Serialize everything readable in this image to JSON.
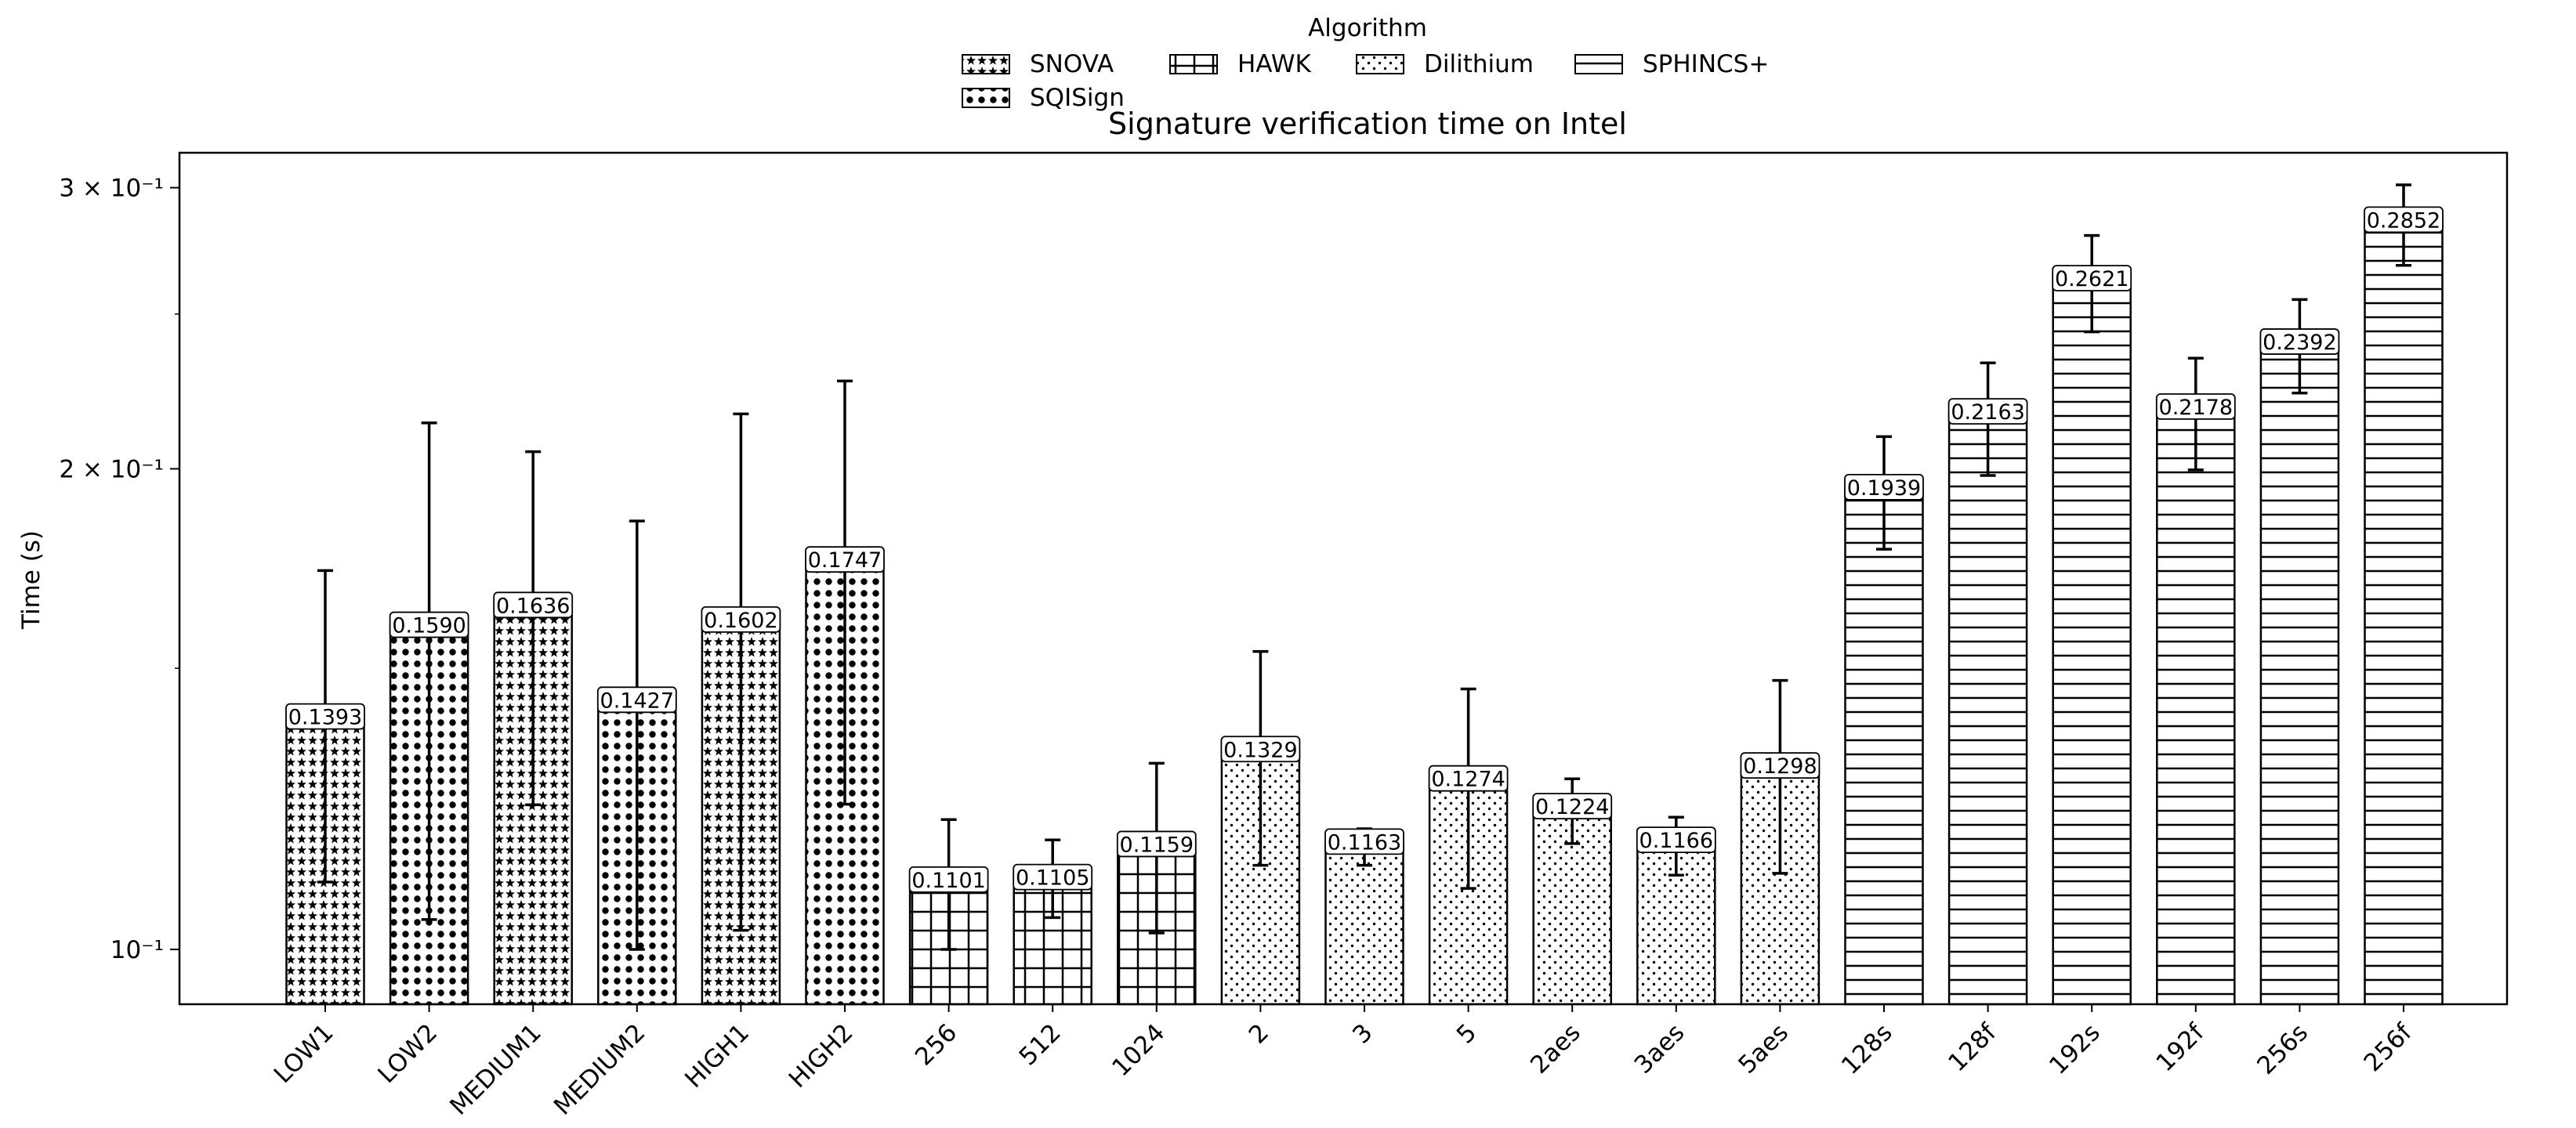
{
  "chart_data": {
    "type": "bar",
    "title": "Signature verification time on Intel",
    "xlabel": "",
    "ylabel": "Time (s)",
    "yscale": "log",
    "ylim": [
      0.0924,
      0.3155
    ],
    "yticks": [
      {
        "value": 0.1,
        "label": "10⁻¹"
      },
      {
        "value": 0.2,
        "label": "2 × 10⁻¹"
      },
      {
        "value": 0.3,
        "label": "3 × 10⁻¹"
      }
    ],
    "grid": false,
    "legend": {
      "title": "Algorithm",
      "placement": "top-center",
      "entries": [
        {
          "name": "SNOVA",
          "pattern": "stars"
        },
        {
          "name": "HAWK",
          "pattern": "grid"
        },
        {
          "name": "Dilithium",
          "pattern": "dots"
        },
        {
          "name": "SPHINCS+",
          "pattern": "hlines"
        },
        {
          "name": "SQISign",
          "pattern": "circles"
        }
      ]
    },
    "bars": [
      {
        "label": "LOW1",
        "algorithm": "SNOVA",
        "value": 0.1393,
        "err_low": 0.1102,
        "err_high": 0.1727,
        "value_label": "0.1393"
      },
      {
        "label": "LOW2",
        "algorithm": "SQISign",
        "value": 0.159,
        "err_low": 0.1044,
        "err_high": 0.2137,
        "value_label": "0.1590"
      },
      {
        "label": "MEDIUM1",
        "algorithm": "SNOVA",
        "value": 0.1636,
        "err_low": 0.1232,
        "err_high": 0.205,
        "value_label": "0.1636"
      },
      {
        "label": "MEDIUM2",
        "algorithm": "SQISign",
        "value": 0.1427,
        "err_low": 0.1,
        "err_high": 0.1855,
        "value_label": "0.1427"
      },
      {
        "label": "HIGH1",
        "algorithm": "SNOVA",
        "value": 0.1602,
        "err_low": 0.1028,
        "err_high": 0.2165,
        "value_label": "0.1602"
      },
      {
        "label": "HIGH2",
        "algorithm": "SQISign",
        "value": 0.1747,
        "err_low": 0.1233,
        "err_high": 0.227,
        "value_label": "0.1747"
      },
      {
        "label": "256",
        "algorithm": "HAWK",
        "value": 0.1101,
        "err_low": 0.1,
        "err_high": 0.1206,
        "value_label": "0.1101"
      },
      {
        "label": "512",
        "algorithm": "HAWK",
        "value": 0.1105,
        "err_low": 0.1047,
        "err_high": 0.1171,
        "value_label": "0.1105"
      },
      {
        "label": "1024",
        "algorithm": "HAWK",
        "value": 0.1159,
        "err_low": 0.1024,
        "err_high": 0.1308,
        "value_label": "0.1159"
      },
      {
        "label": "2",
        "algorithm": "Dilithium",
        "value": 0.1329,
        "err_low": 0.1129,
        "err_high": 0.1537,
        "value_label": "0.1329"
      },
      {
        "label": "3",
        "algorithm": "Dilithium",
        "value": 0.1163,
        "err_low": 0.1129,
        "err_high": 0.119,
        "value_label": "0.1163"
      },
      {
        "label": "5",
        "algorithm": "Dilithium",
        "value": 0.1274,
        "err_low": 0.1092,
        "err_high": 0.1456,
        "value_label": "0.1274"
      },
      {
        "label": "2aes",
        "algorithm": "Dilithium",
        "value": 0.1224,
        "err_low": 0.1165,
        "err_high": 0.1279,
        "value_label": "0.1224"
      },
      {
        "label": "3aes",
        "algorithm": "Dilithium",
        "value": 0.1166,
        "err_low": 0.1113,
        "err_high": 0.121,
        "value_label": "0.1166"
      },
      {
        "label": "5aes",
        "algorithm": "Dilithium",
        "value": 0.1298,
        "err_low": 0.1116,
        "err_high": 0.1474,
        "value_label": "0.1298"
      },
      {
        "label": "128s",
        "algorithm": "SPHINCS+",
        "value": 0.1939,
        "err_low": 0.1781,
        "err_high": 0.2095,
        "value_label": "0.1939"
      },
      {
        "label": "128f",
        "algorithm": "SPHINCS+",
        "value": 0.2163,
        "err_low": 0.1981,
        "err_high": 0.233,
        "value_label": "0.2163"
      },
      {
        "label": "192s",
        "algorithm": "SPHINCS+",
        "value": 0.2621,
        "err_low": 0.2437,
        "err_high": 0.28,
        "value_label": "0.2621"
      },
      {
        "label": "192f",
        "algorithm": "SPHINCS+",
        "value": 0.2178,
        "err_low": 0.1997,
        "err_high": 0.2346,
        "value_label": "0.2178"
      },
      {
        "label": "256s",
        "algorithm": "SPHINCS+",
        "value": 0.2392,
        "err_low": 0.2231,
        "err_high": 0.2553,
        "value_label": "0.2392"
      },
      {
        "label": "256f",
        "algorithm": "SPHINCS+",
        "value": 0.2852,
        "err_low": 0.2682,
        "err_high": 0.3012,
        "value_label": "0.2852"
      }
    ]
  }
}
